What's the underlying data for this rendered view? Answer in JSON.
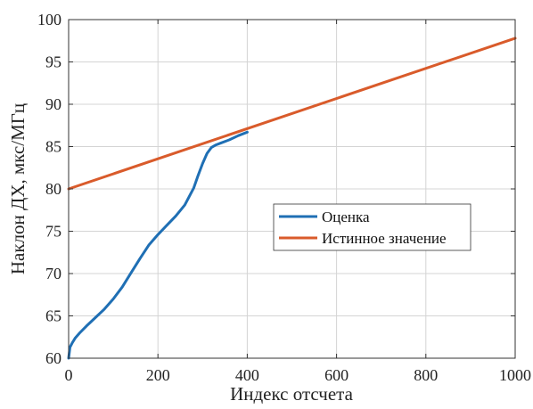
{
  "chart_data": {
    "type": "line",
    "xlabel": "Индекс отсчета",
    "ylabel": "Наклон ДХ, мкс/МГц",
    "xlim": [
      0,
      1000
    ],
    "ylim": [
      60,
      100
    ],
    "xticks": [
      0,
      200,
      400,
      600,
      800,
      1000
    ],
    "yticks": [
      60,
      65,
      70,
      75,
      80,
      85,
      90,
      95,
      100
    ],
    "grid": true,
    "legend_position": "center-right",
    "series": [
      {
        "name": "Оценка",
        "color": "#1f6fb4",
        "x": [
          0,
          3,
          8,
          15,
          25,
          40,
          60,
          80,
          100,
          120,
          140,
          160,
          180,
          200,
          220,
          240,
          260,
          280,
          290,
          300,
          310,
          320,
          330,
          340,
          360,
          380,
          400
        ],
        "y": [
          60,
          61.3,
          61.8,
          62.4,
          63.0,
          63.8,
          64.8,
          65.8,
          67.0,
          68.4,
          70.1,
          71.8,
          73.4,
          74.6,
          75.7,
          76.8,
          78.1,
          80.1,
          81.6,
          83.0,
          84.2,
          84.9,
          85.2,
          85.4,
          85.8,
          86.3,
          86.7
        ]
      },
      {
        "name": "Истинное значение",
        "color": "#d95b2b",
        "x": [
          0,
          1000
        ],
        "y": [
          80,
          97.8
        ]
      }
    ]
  }
}
